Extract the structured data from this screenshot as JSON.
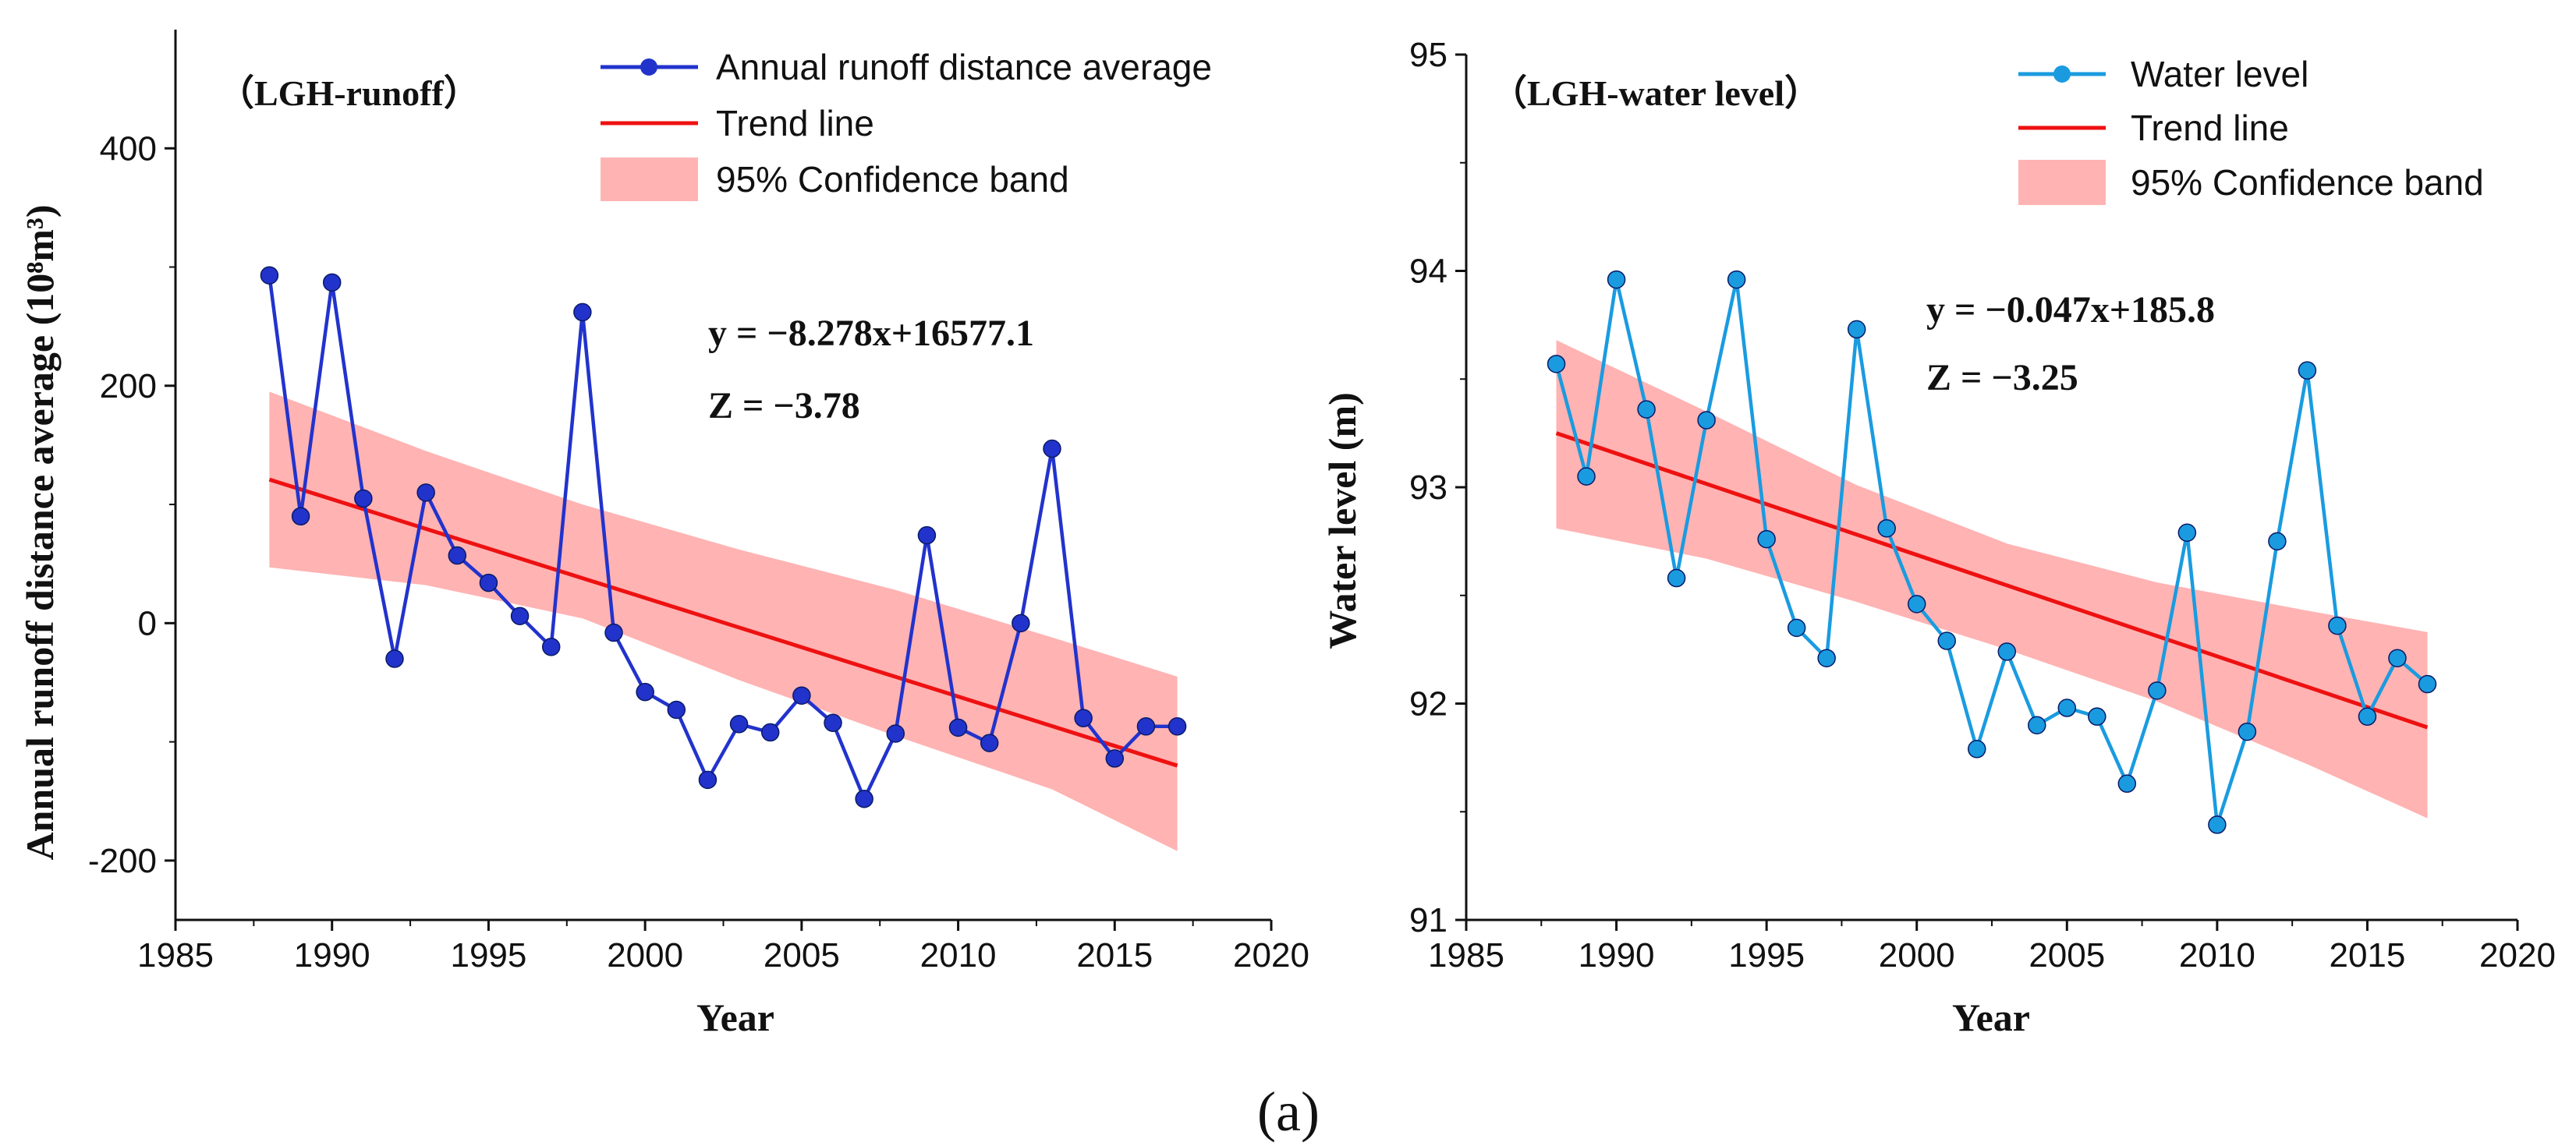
{
  "figure_caption": "(a)",
  "colors": {
    "runoff_series": "#2233cc",
    "level_series": "#1a9be0",
    "trend": "#ee1111",
    "band": "#ff9999"
  },
  "chart_data": [
    {
      "type": "line",
      "panel_tag": "（LGH-runoff）",
      "title": "",
      "xlabel": "Year",
      "ylabel": "Annual runoff distance average (10⁸m³)",
      "xlim": [
        1985,
        2020
      ],
      "ylim": [
        -250,
        500
      ],
      "xticks": [
        1985,
        1990,
        1995,
        2000,
        2005,
        2010,
        2015,
        2020
      ],
      "yticks": [
        -200,
        0,
        200,
        400
      ],
      "x": [
        1988,
        1989,
        1990,
        1991,
        1992,
        1993,
        1994,
        1995,
        1996,
        1997,
        1998,
        1999,
        2000,
        2001,
        2002,
        2003,
        2004,
        2005,
        2006,
        2007,
        2008,
        2009,
        2010,
        2011,
        2012,
        2013,
        2014,
        2015,
        2016,
        2017
      ],
      "series": [
        {
          "name": "Annual runoff distance average",
          "values": [
            293,
            90,
            287,
            105,
            -30,
            110,
            57,
            34,
            6,
            -20,
            262,
            -8,
            -58,
            -73,
            -132,
            -85,
            -92,
            -61,
            -84,
            -148,
            -93,
            74,
            -88,
            -101,
            0,
            147,
            -80,
            -114,
            -87,
            -87
          ]
        }
      ],
      "trend": {
        "name": "Trend line",
        "start": [
          1988,
          121
        ],
        "end": [
          2017,
          -120
        ]
      },
      "band": {
        "name": "95% Confidence band",
        "x": [
          1988,
          1993,
          1998,
          2003,
          2008,
          2013,
          2017
        ],
        "upper": [
          195,
          145,
          100,
          62,
          28,
          -12,
          -45
        ],
        "lower": [
          47,
          32,
          4,
          -48,
          -95,
          -140,
          -192
        ]
      },
      "equation": "y = −8.278x+16577.1",
      "z_stat": "Z = −3.78",
      "legend_position": "top-right"
    },
    {
      "type": "line",
      "panel_tag": "（LGH-water level）",
      "title": "",
      "xlabel": "Year",
      "ylabel": "Water level (m)",
      "xlim": [
        1985,
        2020
      ],
      "ylim": [
        91,
        95
      ],
      "xticks": [
        1985,
        1990,
        1995,
        2000,
        2005,
        2010,
        2015,
        2020
      ],
      "yticks": [
        91,
        92,
        93,
        94,
        95
      ],
      "x": [
        1988,
        1989,
        1990,
        1991,
        1992,
        1993,
        1994,
        1995,
        1996,
        1997,
        1998,
        1999,
        2000,
        2001,
        2002,
        2003,
        2004,
        2005,
        2006,
        2007,
        2008,
        2009,
        2010,
        2011,
        2012,
        2013,
        2014,
        2015,
        2016,
        2017
      ],
      "series": [
        {
          "name": "Water level",
          "values": [
            93.57,
            93.05,
            93.96,
            93.36,
            92.58,
            93.31,
            93.96,
            92.76,
            92.35,
            92.21,
            93.73,
            92.81,
            92.46,
            92.29,
            91.79,
            92.24,
            91.9,
            91.98,
            91.94,
            91.63,
            92.06,
            92.79,
            91.44,
            91.87,
            92.75,
            93.54,
            92.36,
            91.94,
            92.21,
            92.09
          ]
        }
      ],
      "trend": {
        "name": "Trend line",
        "start": [
          1988,
          93.25
        ],
        "end": [
          2017,
          91.89
        ]
      },
      "band": {
        "name": "95% Confidence band",
        "x": [
          1988,
          1993,
          1998,
          2003,
          2008,
          2013,
          2017
        ],
        "upper": [
          93.68,
          93.35,
          93.01,
          92.74,
          92.56,
          92.43,
          92.33
        ],
        "lower": [
          92.81,
          92.67,
          92.47,
          92.25,
          92.01,
          91.72,
          91.47
        ]
      },
      "equation": "y = −0.047x+185.8",
      "z_stat": "Z = −3.25",
      "legend_position": "top-right"
    }
  ]
}
